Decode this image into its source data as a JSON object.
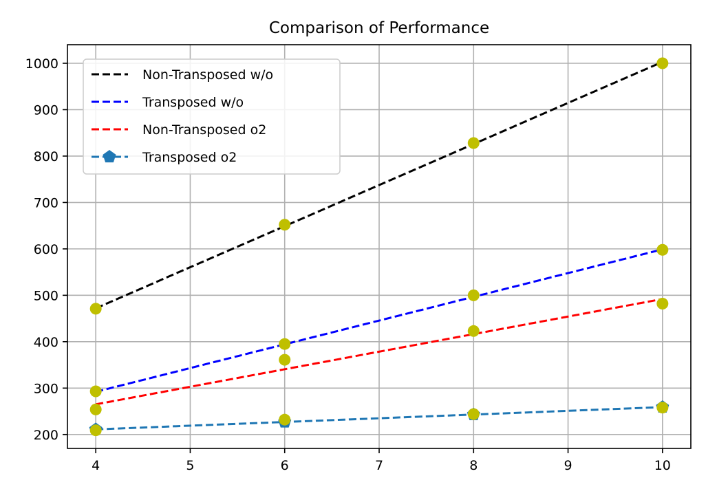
{
  "chart_data": {
    "type": "line",
    "title": "Comparison of Performance",
    "xlabel": "",
    "ylabel": "",
    "xlim": [
      3.7,
      10.3
    ],
    "ylim": [
      170,
      1040
    ],
    "x_ticks": [
      4,
      5,
      6,
      7,
      8,
      9,
      10
    ],
    "y_ticks": [
      200,
      300,
      400,
      500,
      600,
      700,
      800,
      900,
      1000
    ],
    "grid": true,
    "legend_position": "top-left",
    "series": [
      {
        "name": "Non-Transposed w/o",
        "color": "#000000",
        "style": "dashed",
        "marker": "none",
        "x": [
          4,
          10
        ],
        "y": [
          472,
          1003
        ]
      },
      {
        "name": "Transposed w/o",
        "color": "#0000ff",
        "style": "dashed",
        "marker": "none",
        "x": [
          4,
          10
        ],
        "y": [
          292,
          599
        ]
      },
      {
        "name": "Non-Transposed o2",
        "color": "#ff0000",
        "style": "dashed",
        "marker": "none",
        "x": [
          4,
          10
        ],
        "y": [
          265,
          492
        ]
      },
      {
        "name": "Transposed o2",
        "color": "#1f77b4",
        "style": "dashed",
        "marker": "pentagon",
        "x": [
          4,
          6,
          8,
          10
        ],
        "y": [
          211,
          227,
          243,
          259
        ]
      }
    ],
    "observed_points": {
      "color": "#bfbf00",
      "x": [
        4,
        4,
        4,
        4,
        6,
        6,
        6,
        6,
        8,
        8,
        8,
        8,
        10,
        10,
        10,
        10
      ],
      "y": [
        471,
        293,
        254,
        209,
        652,
        395,
        361,
        232,
        828,
        500,
        423,
        244,
        1000,
        598,
        482,
        258
      ]
    }
  }
}
